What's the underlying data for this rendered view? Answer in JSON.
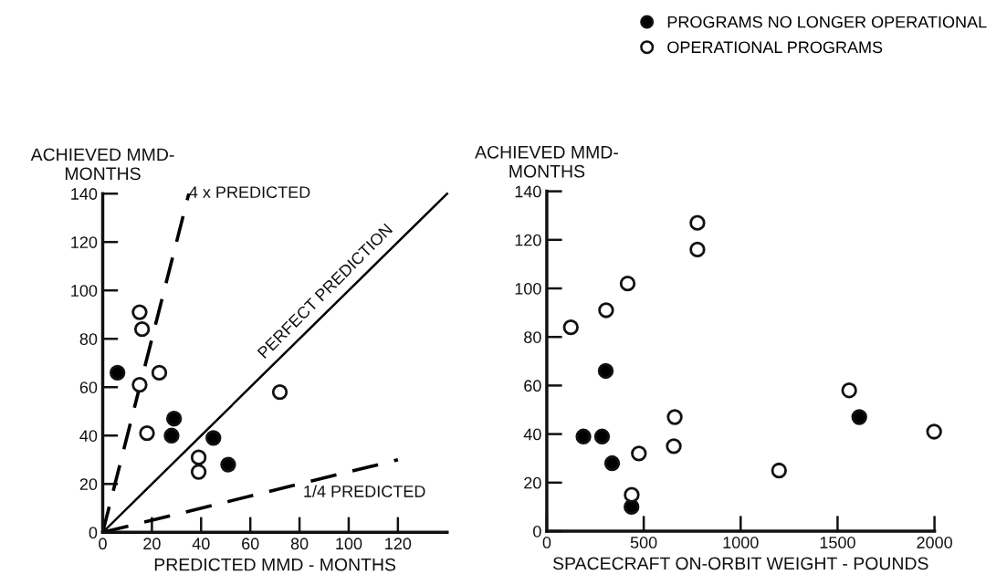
{
  "chart_data": [
    {
      "type": "scatter",
      "xlabel": "PREDICTED MMD - MONTHS",
      "ylabel": "ACHIEVED MMD-\nMONTHS",
      "xlim": [
        0,
        140
      ],
      "ylim": [
        0,
        140
      ],
      "xticks": [
        0,
        20,
        40,
        60,
        80,
        100,
        120
      ],
      "yticks": [
        0,
        20,
        40,
        60,
        80,
        100,
        120,
        140
      ],
      "grid": false,
      "marker": "circle",
      "annotations": [
        {
          "text": "4 x PREDICTED",
          "x": 35,
          "y": 140
        },
        {
          "text": "PERFECT PREDICTION",
          "x": 95,
          "y": 95
        },
        {
          "text": "1/4 PREDICTED",
          "x": 120,
          "y": 30
        }
      ],
      "series": [
        {
          "color": "#000000",
          "x": [
            6,
            29,
            28,
            45,
            51
          ],
          "values": [
            66,
            47,
            40,
            39,
            28
          ]
        },
        {
          "color": "#ffffff",
          "x": [
            15,
            16,
            23,
            15,
            18,
            72,
            39,
            39
          ],
          "values": [
            91,
            84,
            66,
            61,
            41,
            58,
            31,
            25
          ]
        },
        {
          "type": "line",
          "marker": "none",
          "color": "#000000",
          "line_style": "dashed",
          "x": [
            0,
            35
          ],
          "values": [
            0,
            140
          ]
        },
        {
          "type": "line",
          "marker": "none",
          "color": "#000000",
          "line_style": "solid",
          "x": [
            0,
            140
          ],
          "values": [
            0,
            140
          ]
        },
        {
          "type": "line",
          "marker": "none",
          "color": "#000000",
          "line_style": "dashed",
          "x": [
            0,
            120
          ],
          "values": [
            0,
            30
          ]
        }
      ]
    },
    {
      "type": "scatter",
      "xlabel": "SPACECRAFT ON-ORBIT WEIGHT - POUNDS",
      "ylabel": "ACHIEVED MMD-\nMONTHS",
      "xlim": [
        0,
        2000
      ],
      "ylim": [
        0,
        140
      ],
      "xticks": [
        0,
        500,
        1000,
        1500,
        2000
      ],
      "yticks": [
        0,
        20,
        40,
        60,
        80,
        100,
        120,
        140
      ],
      "grid": false,
      "marker": "circle",
      "legend": "top right",
      "series": [
        {
          "name": "PROGRAMS NO LONGER OPERATIONAL",
          "color": "#000000",
          "x": [
            304,
            189,
            285,
            337,
            437,
            1612
          ],
          "values": [
            66,
            39,
            39,
            28,
            10,
            47
          ]
        },
        {
          "name": "OPERATIONAL PROGRAMS",
          "color": "#ffffff",
          "x": [
            124,
            306,
            417,
            777,
            777,
            660,
            655,
            475,
            438,
            1198,
            1560,
            1998
          ],
          "values": [
            84,
            91,
            102,
            127,
            116,
            47,
            35,
            32,
            15,
            25,
            58,
            41
          ]
        }
      ]
    }
  ]
}
